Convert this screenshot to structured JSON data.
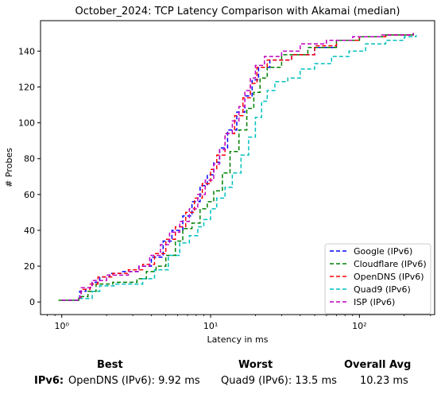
{
  "chart_data": {
    "type": "line",
    "title": "October_2024: TCP Latency Comparison with Akamai (median)",
    "xlabel": "Latency in ms",
    "ylabel": "# Probes",
    "xscale": "log",
    "xlim": [
      0.72,
      320
    ],
    "ylim": [
      -7,
      157
    ],
    "xticks": [
      1,
      10,
      100
    ],
    "xtick_labels": [
      "10⁰",
      "10¹",
      "10²"
    ],
    "yticks": [
      0,
      20,
      40,
      60,
      80,
      100,
      120,
      140
    ],
    "grid": false,
    "legend_position": "lower-right",
    "series": [
      {
        "name": "Google (IPv6)",
        "color": "#0000ff",
        "points": [
          [
            1.0,
            1
          ],
          [
            1.2,
            1
          ],
          [
            1.3,
            2
          ],
          [
            1.32,
            6
          ],
          [
            1.45,
            8
          ],
          [
            1.6,
            11
          ],
          [
            1.8,
            14
          ],
          [
            2.1,
            16
          ],
          [
            2.5,
            17
          ],
          [
            3.3,
            20
          ],
          [
            4.0,
            25
          ],
          [
            4.8,
            34
          ],
          [
            5.5,
            40
          ],
          [
            6.5,
            48
          ],
          [
            7.5,
            56
          ],
          [
            8.5,
            65
          ],
          [
            9.5,
            71
          ],
          [
            10.5,
            78
          ],
          [
            11.5,
            86
          ],
          [
            13.0,
            96
          ],
          [
            15.0,
            106
          ],
          [
            17.0,
            115
          ],
          [
            19.0,
            124
          ],
          [
            21.0,
            131
          ],
          [
            25.0,
            135
          ],
          [
            35.0,
            138
          ],
          [
            50.0,
            142
          ],
          [
            70.0,
            146
          ],
          [
            100.0,
            148
          ],
          [
            150.0,
            149
          ],
          [
            230.0,
            150
          ]
        ]
      },
      {
        "name": "Cloudflare (IPv6)",
        "color": "#008000",
        "points": [
          [
            0.95,
            1
          ],
          [
            1.2,
            1
          ],
          [
            1.3,
            3
          ],
          [
            1.5,
            6
          ],
          [
            1.7,
            10
          ],
          [
            2.2,
            11
          ],
          [
            3.2,
            13
          ],
          [
            3.7,
            17
          ],
          [
            4.3,
            20
          ],
          [
            5.0,
            26
          ],
          [
            5.8,
            34
          ],
          [
            6.5,
            41
          ],
          [
            7.5,
            44
          ],
          [
            8.5,
            52
          ],
          [
            9.5,
            56
          ],
          [
            10.5,
            62
          ],
          [
            12.0,
            72
          ],
          [
            13.5,
            84
          ],
          [
            15.5,
            96
          ],
          [
            17.5,
            108
          ],
          [
            19.5,
            117
          ],
          [
            21.5,
            125
          ],
          [
            24.0,
            131
          ],
          [
            30.0,
            138
          ],
          [
            45.0,
            142
          ],
          [
            70.0,
            146
          ],
          [
            100.0,
            148
          ],
          [
            150.0,
            149
          ],
          [
            230.0,
            150
          ]
        ]
      },
      {
        "name": "OpenDNS (IPv6)",
        "color": "#ff0000",
        "points": [
          [
            1.0,
            1
          ],
          [
            1.3,
            2
          ],
          [
            1.35,
            7
          ],
          [
            1.55,
            10
          ],
          [
            1.75,
            14
          ],
          [
            2.2,
            16
          ],
          [
            2.8,
            18
          ],
          [
            3.5,
            21
          ],
          [
            4.2,
            27
          ],
          [
            5.0,
            35
          ],
          [
            5.8,
            42
          ],
          [
            6.8,
            50
          ],
          [
            7.8,
            58
          ],
          [
            8.8,
            66
          ],
          [
            10.0,
            74
          ],
          [
            11.0,
            82
          ],
          [
            12.5,
            94
          ],
          [
            14.5,
            104
          ],
          [
            16.5,
            114
          ],
          [
            18.5,
            122
          ],
          [
            20.5,
            131
          ],
          [
            24.0,
            135
          ],
          [
            35.0,
            138
          ],
          [
            50.0,
            143
          ],
          [
            70.0,
            146
          ],
          [
            100.0,
            148
          ],
          [
            150.0,
            149
          ],
          [
            230.0,
            150
          ]
        ]
      },
      {
        "name": "Quad9 (IPv6)",
        "color": "#00bfbf",
        "points": [
          [
            1.0,
            1
          ],
          [
            1.3,
            2
          ],
          [
            1.6,
            6
          ],
          [
            1.8,
            9
          ],
          [
            2.3,
            10
          ],
          [
            3.5,
            13
          ],
          [
            4.2,
            18
          ],
          [
            5.2,
            26
          ],
          [
            6.2,
            33
          ],
          [
            7.2,
            37
          ],
          [
            8.2,
            42
          ],
          [
            9.0,
            46
          ],
          [
            10.0,
            52
          ],
          [
            11.0,
            58
          ],
          [
            12.5,
            64
          ],
          [
            14.0,
            72
          ],
          [
            16.0,
            82
          ],
          [
            18.0,
            92
          ],
          [
            20.0,
            103
          ],
          [
            22.0,
            112
          ],
          [
            24.0,
            118
          ],
          [
            27.0,
            123
          ],
          [
            33.0,
            125
          ],
          [
            40.0,
            130
          ],
          [
            50.0,
            133
          ],
          [
            65.0,
            137
          ],
          [
            85.0,
            140
          ],
          [
            110.0,
            144
          ],
          [
            150.0,
            146
          ],
          [
            200.0,
            148
          ],
          [
            240.0,
            149
          ]
        ]
      },
      {
        "name": "ISP (IPv6)",
        "color": "#bf00bf",
        "points": [
          [
            1.0,
            1
          ],
          [
            1.32,
            3
          ],
          [
            1.35,
            8
          ],
          [
            1.6,
            12
          ],
          [
            2.0,
            15
          ],
          [
            2.8,
            17
          ],
          [
            3.3,
            20
          ],
          [
            3.9,
            26
          ],
          [
            4.6,
            32
          ],
          [
            5.3,
            39
          ],
          [
            6.2,
            45
          ],
          [
            7.2,
            52
          ],
          [
            8.2,
            60
          ],
          [
            9.2,
            68
          ],
          [
            10.5,
            77
          ],
          [
            11.5,
            85
          ],
          [
            12.5,
            94
          ],
          [
            14.0,
            101
          ],
          [
            15.5,
            109
          ],
          [
            17.0,
            118
          ],
          [
            18.5,
            125
          ],
          [
            20.0,
            132
          ],
          [
            23.0,
            137
          ],
          [
            30.0,
            140
          ],
          [
            40.0,
            144
          ],
          [
            60.0,
            146
          ],
          [
            90.0,
            148
          ],
          [
            140.0,
            149
          ],
          [
            230.0,
            150
          ]
        ]
      }
    ]
  },
  "stats": {
    "best_heading": "Best",
    "worst_heading": "Worst",
    "avg_heading": "Overall Avg",
    "row_label": "IPv6:",
    "best_value": "OpenDNS (IPv6): 9.92 ms",
    "worst_value": "Quad9 (IPv6): 13.5 ms",
    "avg_value": "10.23 ms"
  }
}
